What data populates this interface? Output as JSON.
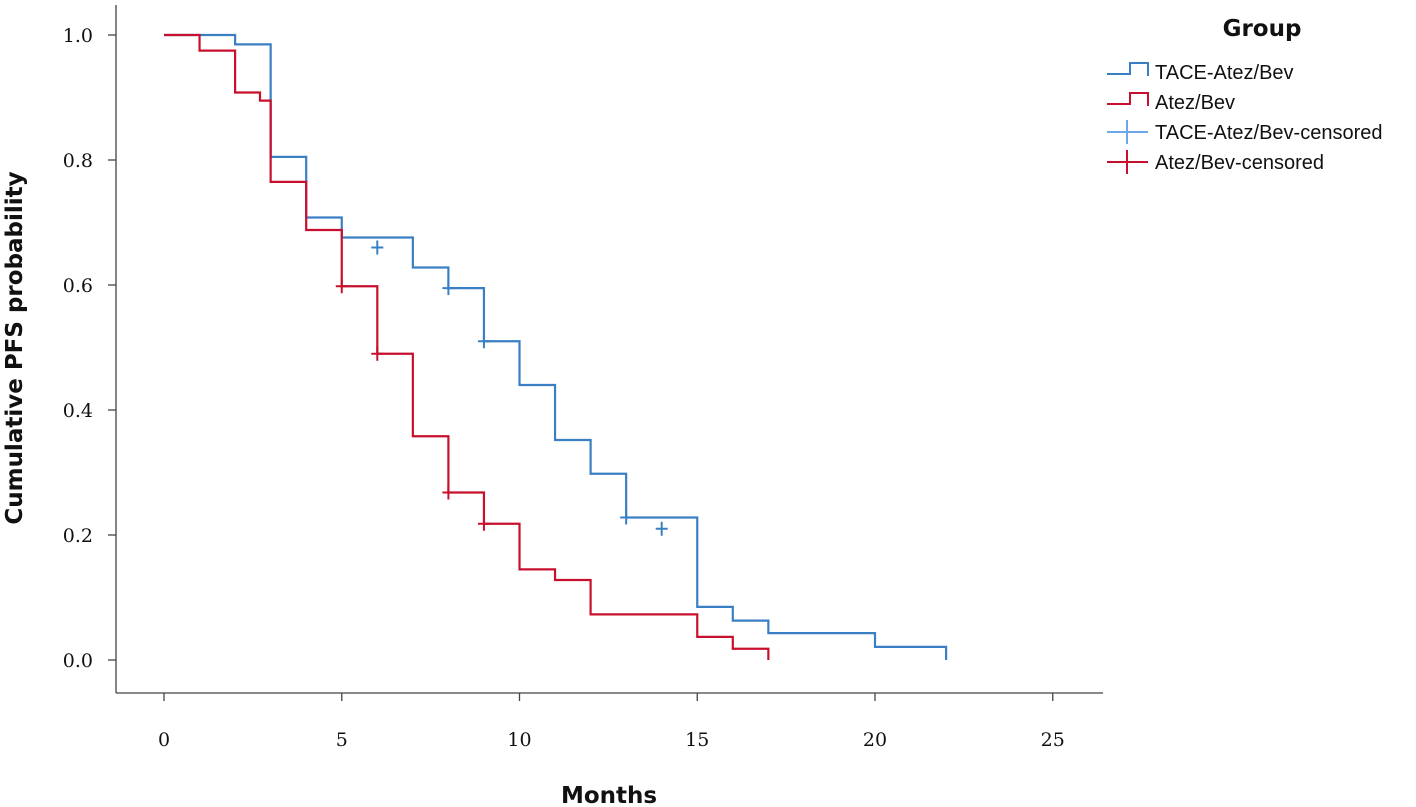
{
  "chart_data": {
    "type": "line",
    "xlabel": "Months",
    "ylabel": "Cumulative PFS probability",
    "xlim": [
      0,
      25
    ],
    "ylim": [
      0.0,
      1.0
    ],
    "xticks": [
      "0",
      "5",
      "10",
      "15",
      "20",
      "25"
    ],
    "xtick_values": [
      0,
      5,
      10,
      15,
      20,
      25
    ],
    "yticks": [
      "0.0",
      "0.2",
      "0.4",
      "0.6",
      "0.8",
      "1.0"
    ],
    "ytick_values": [
      0.0,
      0.2,
      0.4,
      0.6,
      0.8,
      1.0
    ],
    "grid": false,
    "legend_title": "Group",
    "legend_position": "top-right",
    "legend": [
      {
        "label": "TACE-Atez/Bev",
        "color": "#3a7fc4",
        "marker": "step"
      },
      {
        "label": "Atez/Bev",
        "color": "#c8102e",
        "marker": "step"
      },
      {
        "label": "TACE-Atez/Bev-censored",
        "color": "#6fa8e8",
        "marker": "plus"
      },
      {
        "label": "Atez/Bev-censored",
        "color": "#c8102e",
        "marker": "plus"
      }
    ],
    "series": [
      {
        "name": "TACE-Atez/Bev",
        "color": "#3a7fc4",
        "steps": [
          [
            0,
            1.0
          ],
          [
            2,
            0.985
          ],
          [
            3,
            0.805
          ],
          [
            4,
            0.708
          ],
          [
            5,
            0.676
          ],
          [
            7,
            0.628
          ],
          [
            8,
            0.595
          ],
          [
            9,
            0.51
          ],
          [
            10,
            0.44
          ],
          [
            11,
            0.352
          ],
          [
            12,
            0.298
          ],
          [
            13,
            0.228
          ],
          [
            15,
            0.085
          ],
          [
            16,
            0.063
          ],
          [
            17,
            0.043
          ],
          [
            20,
            0.021
          ],
          [
            22,
            0.0
          ]
        ],
        "end_x": 22,
        "censored": [
          [
            6,
            0.66
          ],
          [
            8,
            0.595
          ],
          [
            9,
            0.51
          ],
          [
            13,
            0.228
          ],
          [
            14,
            0.21
          ]
        ]
      },
      {
        "name": "Atez/Bev",
        "color": "#c8102e",
        "steps": [
          [
            0,
            1.0
          ],
          [
            1,
            0.975
          ],
          [
            2,
            0.908
          ],
          [
            2.7,
            0.895
          ],
          [
            3,
            0.765
          ],
          [
            4,
            0.688
          ],
          [
            5,
            0.598
          ],
          [
            6,
            0.49
          ],
          [
            7,
            0.358
          ],
          [
            8,
            0.268
          ],
          [
            9,
            0.218
          ],
          [
            10,
            0.145
          ],
          [
            11,
            0.128
          ],
          [
            12,
            0.073
          ],
          [
            15,
            0.037
          ],
          [
            16,
            0.018
          ],
          [
            17,
            0.0
          ]
        ],
        "end_x": 17,
        "censored": [
          [
            5,
            0.598
          ],
          [
            6,
            0.49
          ],
          [
            8,
            0.268
          ],
          [
            9,
            0.218
          ]
        ]
      }
    ]
  }
}
